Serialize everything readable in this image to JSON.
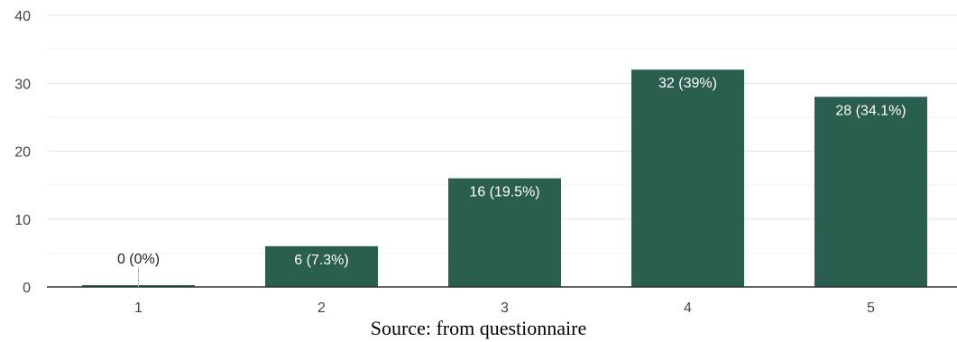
{
  "chart_data": {
    "type": "bar",
    "categories": [
      "1",
      "2",
      "3",
      "4",
      "5"
    ],
    "values": [
      0,
      6,
      16,
      32,
      28
    ],
    "data_labels": [
      "0 (0%)",
      "6 (7.3%)",
      "16 (19.5%)",
      "32 (39%)",
      "28 (34.1%)"
    ],
    "ylim": [
      0,
      40
    ],
    "y_ticks": [
      0,
      10,
      20,
      30,
      40
    ],
    "grid": true,
    "bar_color": "#2a5f4f",
    "label_color_inside": "#ffffff",
    "label_color_outside": "#222222"
  },
  "caption": "Source: from questionnaire"
}
